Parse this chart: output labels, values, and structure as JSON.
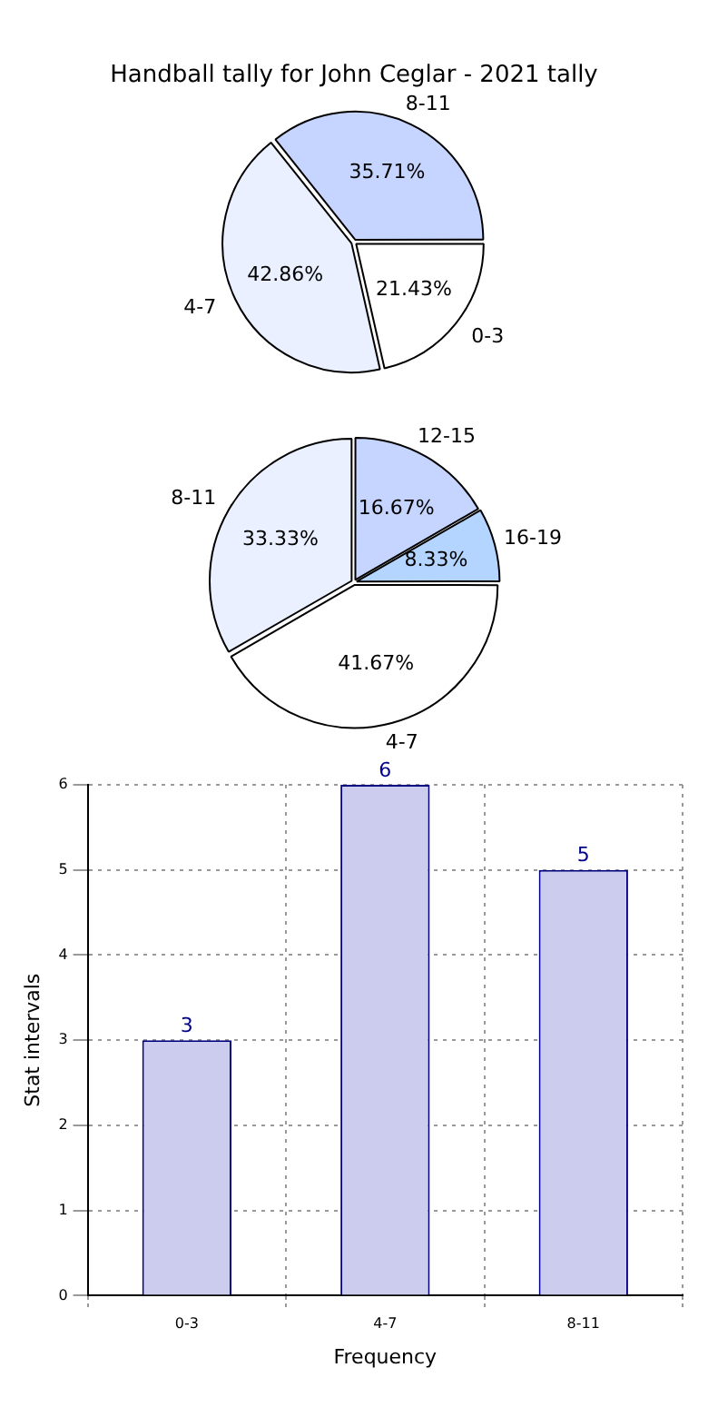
{
  "chart_data": [
    {
      "type": "pie",
      "title": "Handball tally for John Ceglar - 2021 tally",
      "categories": [
        "0-3",
        "4-7",
        "8-11"
      ],
      "values": [
        21.43,
        42.86,
        35.71
      ],
      "value_labels": [
        "21.43%",
        "42.86%",
        "35.71%"
      ],
      "colors": [
        "#ffffff",
        "#eaf0ff",
        "#c6d5ff"
      ]
    },
    {
      "type": "pie",
      "categories": [
        "4-7",
        "8-11",
        "12-15",
        "16-19"
      ],
      "values": [
        41.67,
        33.33,
        16.67,
        8.33
      ],
      "value_labels": [
        "41.67%",
        "33.33%",
        "16.67%",
        "8.33%"
      ],
      "colors": [
        "#ffffff",
        "#eaf0ff",
        "#c6d5ff",
        "#b3d5ff"
      ]
    },
    {
      "type": "bar",
      "categories": [
        "0-3",
        "4-7",
        "8-11"
      ],
      "values": [
        3,
        6,
        5
      ],
      "color": "#ccccee",
      "xlabel": "Frequency",
      "ylabel": "Stat intervals",
      "ylim": [
        0,
        6
      ],
      "yticks": [
        0,
        1,
        2,
        3,
        4,
        5,
        6
      ],
      "grid": true,
      "data_labels": true
    }
  ]
}
